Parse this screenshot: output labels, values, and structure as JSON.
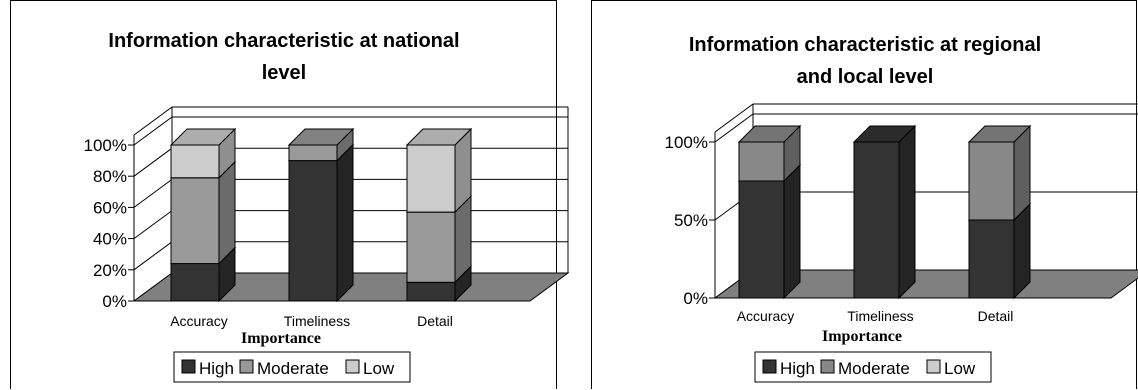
{
  "charts": [
    {
      "chart_data": {
        "type": "bar",
        "stacked": true,
        "three_d": true,
        "percent_axis": true,
        "title_lines": [
          "Information characteristic at national",
          "level"
        ],
        "categories": [
          "Accuracy",
          "Timeliness",
          "Detail"
        ],
        "xlabel": "Importance",
        "ylabel": "",
        "yticks": [
          "0%",
          "20%",
          "40%",
          "60%",
          "80%",
          "100%"
        ],
        "ylim": [
          0,
          100
        ],
        "grid": true,
        "legend_position": "bottom",
        "series": [
          {
            "name": "High",
            "color": "#333333",
            "values": [
              24,
              90,
              12
            ]
          },
          {
            "name": "Moderate",
            "color": "#999999",
            "values": [
              55,
              10,
              45
            ]
          },
          {
            "name": "Low",
            "color": "#cccccc",
            "values": [
              21,
              0,
              43
            ]
          }
        ]
      }
    },
    {
      "chart_data": {
        "type": "bar",
        "stacked": true,
        "three_d": true,
        "percent_axis": true,
        "title_lines": [
          "Information characteristic at regional",
          "and local level"
        ],
        "categories": [
          "Accuracy",
          "Timeliness",
          "Detail"
        ],
        "xlabel": "Importance",
        "ylabel": "",
        "yticks": [
          "0%",
          "50%",
          "100%"
        ],
        "ylim": [
          0,
          100
        ],
        "grid": true,
        "legend_position": "bottom",
        "series": [
          {
            "name": "High",
            "color": "#333333",
            "values": [
              75,
              100,
              50
            ]
          },
          {
            "name": "Moderate",
            "color": "#888888",
            "values": [
              25,
              0,
              50
            ]
          },
          {
            "name": "Low",
            "color": "#cccccc",
            "values": [
              0,
              0,
              0
            ]
          }
        ]
      }
    }
  ]
}
